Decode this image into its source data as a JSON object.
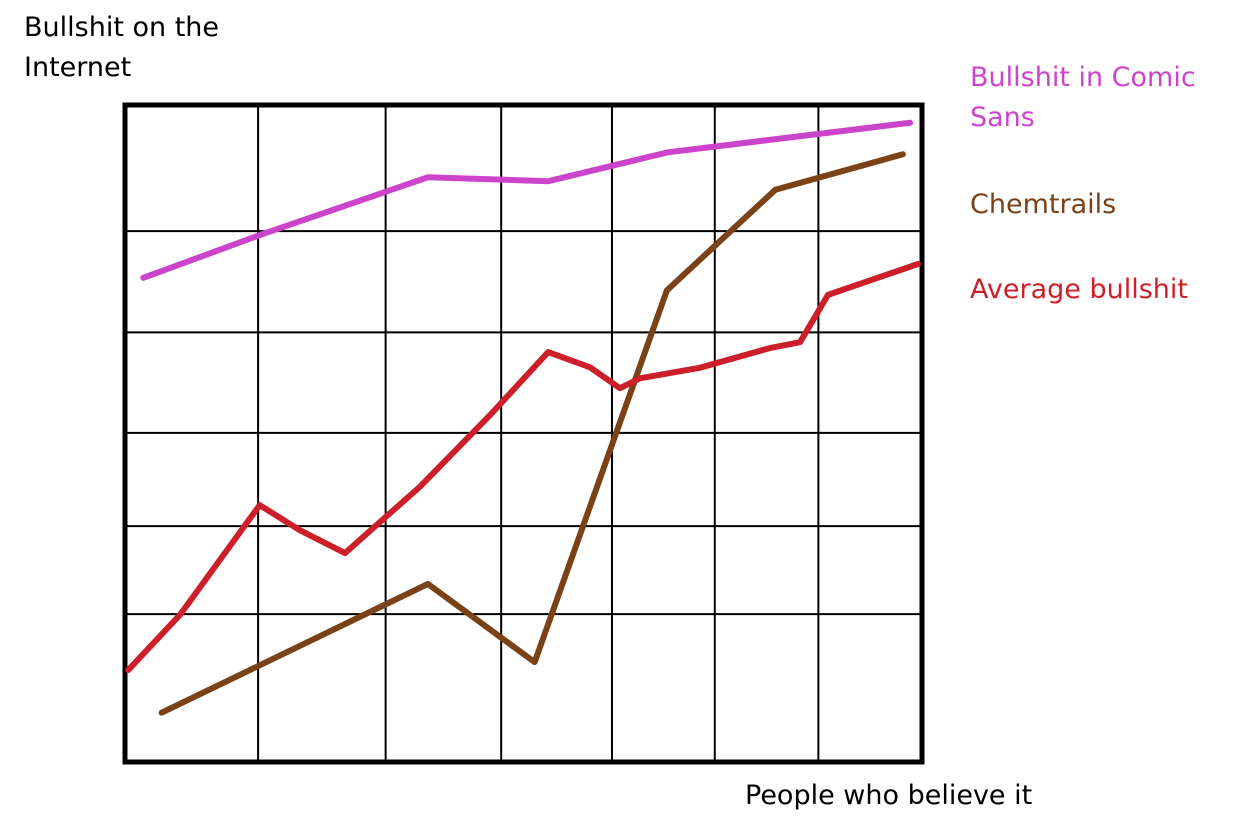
{
  "chart_data": {
    "type": "line",
    "y_label": "Bullshit on the Internet",
    "x_label": "People who believe it",
    "xlim": [
      0,
      100
    ],
    "ylim": [
      0,
      100
    ],
    "xticks": [
      16.7,
      32.7,
      47.2,
      61.1,
      74.0,
      87.0
    ],
    "yticks": [
      22.5,
      35.9,
      50.1,
      65.4,
      80.8
    ],
    "grid": true,
    "series": [
      {
        "name": "Bullshit in Comic Sans",
        "color": "#cc44cc",
        "x": [
          2.3,
          16.9,
          38.0,
          53.1,
          68.1,
          98.5
        ],
        "values": [
          73.7,
          80.2,
          89.0,
          88.4,
          92.8,
          97.3
        ]
      },
      {
        "name": "Chemtrails",
        "color": "#7a4216",
        "x": [
          4.6,
          38.0,
          51.4,
          68.0,
          81.6,
          97.6
        ],
        "values": [
          7.5,
          27.1,
          15.2,
          71.8,
          87.1,
          92.5
        ]
      },
      {
        "name": "Average bullshit",
        "color": "#cc1f2a",
        "x": [
          0.4,
          6.9,
          16.9,
          21.9,
          27.6,
          37.0,
          45.8,
          53.1,
          58.3,
          62.1,
          64.6,
          72.1,
          80.9,
          84.7,
          88.2,
          99.5
        ],
        "values": [
          14.0,
          22.4,
          39.1,
          35.3,
          31.8,
          41.9,
          52.8,
          62.4,
          60.1,
          56.9,
          58.4,
          60.0,
          63.0,
          63.9,
          71.1,
          75.8
        ]
      }
    ]
  }
}
